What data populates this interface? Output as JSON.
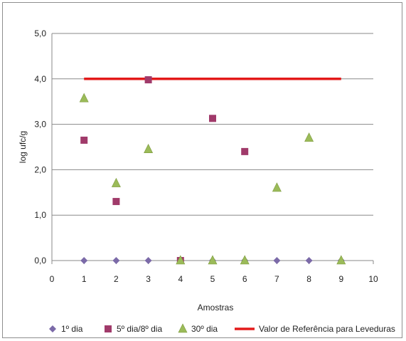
{
  "chart_data": {
    "type": "scatter",
    "title": "",
    "xlabel": "Amostras",
    "ylabel": "log ufc/g",
    "xlim": [
      0,
      10
    ],
    "ylim": [
      0,
      5
    ],
    "x_ticks": [
      "0",
      "1",
      "2",
      "3",
      "4",
      "5",
      "6",
      "7",
      "8",
      "9",
      "10"
    ],
    "y_ticks": [
      "0,0",
      "1,0",
      "2,0",
      "3,0",
      "4,0",
      "5,0"
    ],
    "grid": "horizontal",
    "legend_position": "bottom",
    "series": [
      {
        "name": "1º dia",
        "marker": "diamond",
        "color": "#7b6aa8",
        "points": [
          [
            1,
            0
          ],
          [
            2,
            0
          ],
          [
            3,
            0
          ],
          [
            4,
            0
          ],
          [
            5,
            0
          ],
          [
            6,
            0
          ],
          [
            7,
            0
          ],
          [
            8,
            0
          ],
          [
            9,
            0
          ]
        ]
      },
      {
        "name": "5º dia/8º dia",
        "marker": "square",
        "color": "#a03a6a",
        "points": [
          [
            1,
            2.65
          ],
          [
            2,
            1.3
          ],
          [
            3,
            3.98
          ],
          [
            4,
            0
          ],
          [
            5,
            3.13
          ],
          [
            6,
            2.4
          ]
        ]
      },
      {
        "name": "30º dia",
        "marker": "triangle",
        "color": "#9bbb59",
        "points": [
          [
            1,
            3.57
          ],
          [
            2,
            1.7
          ],
          [
            3,
            2.45
          ],
          [
            4,
            0
          ],
          [
            5,
            0
          ],
          [
            6,
            0
          ],
          [
            7,
            1.6
          ],
          [
            8,
            2.7
          ],
          [
            9,
            0
          ]
        ]
      },
      {
        "name": "Valor de Referência para Leveduras",
        "marker": "line",
        "color": "#e31a1a",
        "points": [
          [
            1,
            4
          ],
          [
            9,
            4
          ]
        ]
      }
    ]
  }
}
